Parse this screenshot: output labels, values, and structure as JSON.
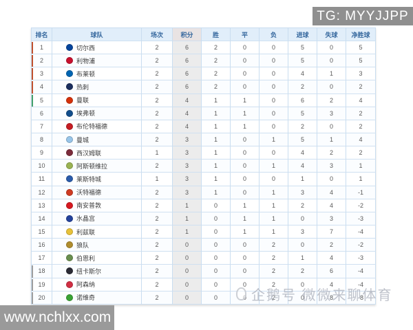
{
  "watermarks": {
    "tg_badge": "TG: MYYJJPP",
    "site_url": "www.nchlxx.com",
    "center_text": "企鹅号 微微来聊体育"
  },
  "colors": {
    "header_bg": "#e1eefa",
    "header_text": "#36689e",
    "grid_line": "#c9ddf0",
    "points_col_bg": "#ececec",
    "points_header_bg": "#e9e3e3",
    "watermark_bg": "#959595",
    "zone_cl": "#c0502d",
    "zone_el": "#45a06b",
    "zone_rel": "#9e9e9e"
  },
  "table": {
    "headers": [
      "排名",
      "球队",
      "场次",
      "积分",
      "胜",
      "平",
      "负",
      "进球",
      "失球",
      "净胜球"
    ],
    "rows": [
      {
        "rank": "1",
        "team": "切尔西",
        "badge_color": "#06459c",
        "zone": "cl",
        "played": "2",
        "points": "6",
        "win": "2",
        "draw": "0",
        "loss": "0",
        "goals_for": "5",
        "goals_against": "0",
        "goal_diff": "5"
      },
      {
        "rank": "2",
        "team": "利物浦",
        "badge_color": "#c8102e",
        "zone": "cl",
        "played": "2",
        "points": "6",
        "win": "2",
        "draw": "0",
        "loss": "0",
        "goals_for": "5",
        "goals_against": "0",
        "goal_diff": "5"
      },
      {
        "rank": "3",
        "team": "布莱顿",
        "badge_color": "#0065b2",
        "zone": "cl",
        "played": "2",
        "points": "6",
        "win": "2",
        "draw": "0",
        "loss": "0",
        "goals_for": "4",
        "goals_against": "1",
        "goal_diff": "3"
      },
      {
        "rank": "4",
        "team": "热刺",
        "badge_color": "#1b2f5e",
        "zone": "cl",
        "played": "2",
        "points": "6",
        "win": "2",
        "draw": "0",
        "loss": "0",
        "goals_for": "2",
        "goals_against": "0",
        "goal_diff": "2"
      },
      {
        "rank": "5",
        "team": "曼联",
        "badge_color": "#d5310a",
        "zone": "el",
        "played": "2",
        "points": "4",
        "win": "1",
        "draw": "1",
        "loss": "0",
        "goals_for": "6",
        "goals_against": "2",
        "goal_diff": "4"
      },
      {
        "rank": "6",
        "team": "埃弗顿",
        "badge_color": "#124e8c",
        "zone": "",
        "played": "2",
        "points": "4",
        "win": "1",
        "draw": "1",
        "loss": "0",
        "goals_for": "5",
        "goals_against": "3",
        "goal_diff": "2"
      },
      {
        "rank": "7",
        "team": "布伦特福德",
        "badge_color": "#c61d23",
        "zone": "",
        "played": "2",
        "points": "4",
        "win": "1",
        "draw": "1",
        "loss": "0",
        "goals_for": "2",
        "goals_against": "0",
        "goal_diff": "2"
      },
      {
        "rank": "8",
        "team": "曼城",
        "badge_color": "#98c5e9",
        "zone": "",
        "played": "2",
        "points": "3",
        "win": "1",
        "draw": "0",
        "loss": "1",
        "goals_for": "5",
        "goals_against": "1",
        "goal_diff": "4"
      },
      {
        "rank": "9",
        "team": "西汉姆联",
        "badge_color": "#7c2c3b",
        "zone": "",
        "played": "1",
        "points": "3",
        "win": "1",
        "draw": "0",
        "loss": "0",
        "goals_for": "4",
        "goals_against": "2",
        "goal_diff": "2"
      },
      {
        "rank": "10",
        "team": "阿斯顿维拉",
        "badge_color": "#9ab353",
        "zone": "",
        "played": "2",
        "points": "3",
        "win": "1",
        "draw": "0",
        "loss": "1",
        "goals_for": "4",
        "goals_against": "3",
        "goal_diff": "1"
      },
      {
        "rank": "11",
        "team": "莱斯特城",
        "badge_color": "#2b5cab",
        "zone": "",
        "played": "1",
        "points": "3",
        "win": "1",
        "draw": "0",
        "loss": "0",
        "goals_for": "1",
        "goals_against": "0",
        "goal_diff": "1"
      },
      {
        "rank": "12",
        "team": "沃特福德",
        "badge_color": "#cf3b22",
        "zone": "",
        "played": "2",
        "points": "3",
        "win": "1",
        "draw": "0",
        "loss": "1",
        "goals_for": "3",
        "goals_against": "4",
        "goal_diff": "-1"
      },
      {
        "rank": "13",
        "team": "南安普敦",
        "badge_color": "#d71920",
        "zone": "",
        "played": "2",
        "points": "1",
        "win": "0",
        "draw": "1",
        "loss": "1",
        "goals_for": "2",
        "goals_against": "4",
        "goal_diff": "-2"
      },
      {
        "rank": "14",
        "team": "水晶宫",
        "badge_color": "#24439c",
        "zone": "",
        "played": "2",
        "points": "1",
        "win": "0",
        "draw": "1",
        "loss": "1",
        "goals_for": "0",
        "goals_against": "3",
        "goal_diff": "-3"
      },
      {
        "rank": "15",
        "team": "利兹联",
        "badge_color": "#e8c23a",
        "zone": "",
        "played": "2",
        "points": "1",
        "win": "0",
        "draw": "1",
        "loss": "1",
        "goals_for": "3",
        "goals_against": "7",
        "goal_diff": "-4"
      },
      {
        "rank": "16",
        "team": "狼队",
        "badge_color": "#b08d2e",
        "zone": "",
        "played": "2",
        "points": "0",
        "win": "0",
        "draw": "0",
        "loss": "2",
        "goals_for": "0",
        "goals_against": "2",
        "goal_diff": "-2"
      },
      {
        "rank": "17",
        "team": "伯恩利",
        "badge_color": "#6a8f4f",
        "zone": "",
        "played": "2",
        "points": "0",
        "win": "0",
        "draw": "0",
        "loss": "2",
        "goals_for": "1",
        "goals_against": "4",
        "goal_diff": "-3"
      },
      {
        "rank": "18",
        "team": "纽卡斯尔",
        "badge_color": "#2b2b35",
        "zone": "rel",
        "played": "2",
        "points": "0",
        "win": "0",
        "draw": "0",
        "loss": "2",
        "goals_for": "2",
        "goals_against": "6",
        "goal_diff": "-4"
      },
      {
        "rank": "19",
        "team": "阿森纳",
        "badge_color": "#d12f43",
        "zone": "rel",
        "played": "2",
        "points": "0",
        "win": "0",
        "draw": "0",
        "loss": "2",
        "goals_for": "0",
        "goals_against": "4",
        "goal_diff": "-4"
      },
      {
        "rank": "20",
        "team": "诺维奇",
        "badge_color": "#3aa335",
        "zone": "rel",
        "played": "2",
        "points": "0",
        "win": "0",
        "draw": "0",
        "loss": "2",
        "goals_for": "0",
        "goals_against": "8",
        "goal_diff": "-8"
      }
    ]
  }
}
